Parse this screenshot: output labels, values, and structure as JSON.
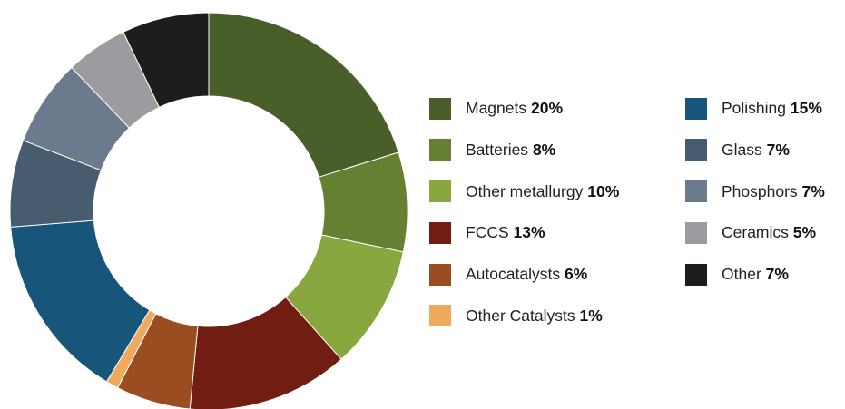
{
  "chart_data": {
    "type": "pie",
    "title": "",
    "donut": true,
    "legend_position": "right",
    "unit": "%",
    "slices": [
      {
        "label": "Magnets",
        "value": 20,
        "display": "20%",
        "color": "#4a5e2a"
      },
      {
        "label": "Batteries",
        "value": 8,
        "display": "8%",
        "color": "#667f33"
      },
      {
        "label": "Other metallurgy",
        "value": 10,
        "display": "10%",
        "color": "#8aa63e"
      },
      {
        "label": "FCCS",
        "value": 13,
        "display": "13%",
        "color": "#721d12"
      },
      {
        "label": "Autocatalysts",
        "value": 6,
        "display": "6%",
        "color": "#9b4d22"
      },
      {
        "label": "Other Catalysts",
        "value": 1,
        "display": "1%",
        "color": "#f0aa5e"
      },
      {
        "label": "Polishing",
        "value": 15,
        "display": "15%",
        "color": "#18557a"
      },
      {
        "label": "Glass",
        "value": 7,
        "display": "7%",
        "color": "#485c6f"
      },
      {
        "label": "Phosphors",
        "value": 7,
        "display": "7%",
        "color": "#6b7a8d"
      },
      {
        "label": "Ceramics",
        "value": 5,
        "display": "5%",
        "color": "#9a9c9f"
      },
      {
        "label": "Other",
        "value": 7,
        "display": "7%",
        "color": "#1e1c1d"
      }
    ]
  }
}
